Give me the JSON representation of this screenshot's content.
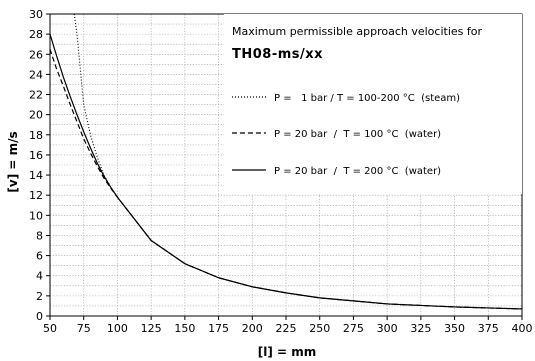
{
  "chart_data": {
    "type": "line",
    "title": "Maximum permissible approach velocities for",
    "subtitle": "TH08-ms/xx",
    "xlabel": "[l] = mm",
    "ylabel": "[v] = m/s",
    "xlim": [
      50,
      400
    ],
    "ylim": [
      0,
      30
    ],
    "x_ticks": [
      50,
      75,
      100,
      125,
      150,
      175,
      200,
      225,
      250,
      275,
      300,
      325,
      350,
      375,
      400
    ],
    "y_ticks": [
      0,
      2,
      4,
      6,
      8,
      10,
      12,
      14,
      16,
      18,
      20,
      22,
      24,
      26,
      28,
      30
    ],
    "grid": true,
    "legend_position": "top-right",
    "series": [
      {
        "name": "P =   1 bar / T = 100-200 °C  (steam)",
        "style": "dotted",
        "x": [
          68,
          70,
          75,
          80,
          85,
          90,
          95,
          100,
          125,
          150,
          175,
          200,
          225,
          250,
          275,
          300,
          325,
          350,
          375,
          400
        ],
        "y": [
          30,
          28.0,
          21.0,
          18.0,
          15.8,
          14.0,
          12.8,
          11.8,
          7.5,
          5.2,
          3.8,
          2.9,
          2.3,
          1.8,
          1.5,
          1.2,
          1.05,
          0.9,
          0.8,
          0.7
        ]
      },
      {
        "name": "P = 20 bar  /  T = 100 °C  (water)",
        "style": "dashed",
        "x": [
          50,
          55,
          60,
          65,
          70,
          75,
          80,
          85,
          90,
          95,
          100,
          125,
          150,
          175,
          200,
          225,
          250,
          275,
          300,
          325,
          350,
          375,
          400
        ],
        "y": [
          26.5,
          24.5,
          22.8,
          21.0,
          19.3,
          17.6,
          16.2,
          14.9,
          13.7,
          12.7,
          11.8,
          7.5,
          5.2,
          3.8,
          2.9,
          2.3,
          1.8,
          1.5,
          1.2,
          1.05,
          0.9,
          0.8,
          0.7
        ]
      },
      {
        "name": "P = 20 bar  /  T = 200 °C  (water)",
        "style": "solid",
        "x": [
          50,
          55,
          60,
          65,
          70,
          75,
          80,
          85,
          90,
          95,
          100,
          125,
          150,
          175,
          200,
          225,
          250,
          275,
          300,
          325,
          350,
          375,
          400
        ],
        "y": [
          28.0,
          25.8,
          23.7,
          21.8,
          20.0,
          18.3,
          16.7,
          15.2,
          13.9,
          12.8,
          11.8,
          7.5,
          5.2,
          3.8,
          2.9,
          2.3,
          1.8,
          1.5,
          1.2,
          1.05,
          0.9,
          0.8,
          0.7
        ]
      }
    ]
  }
}
